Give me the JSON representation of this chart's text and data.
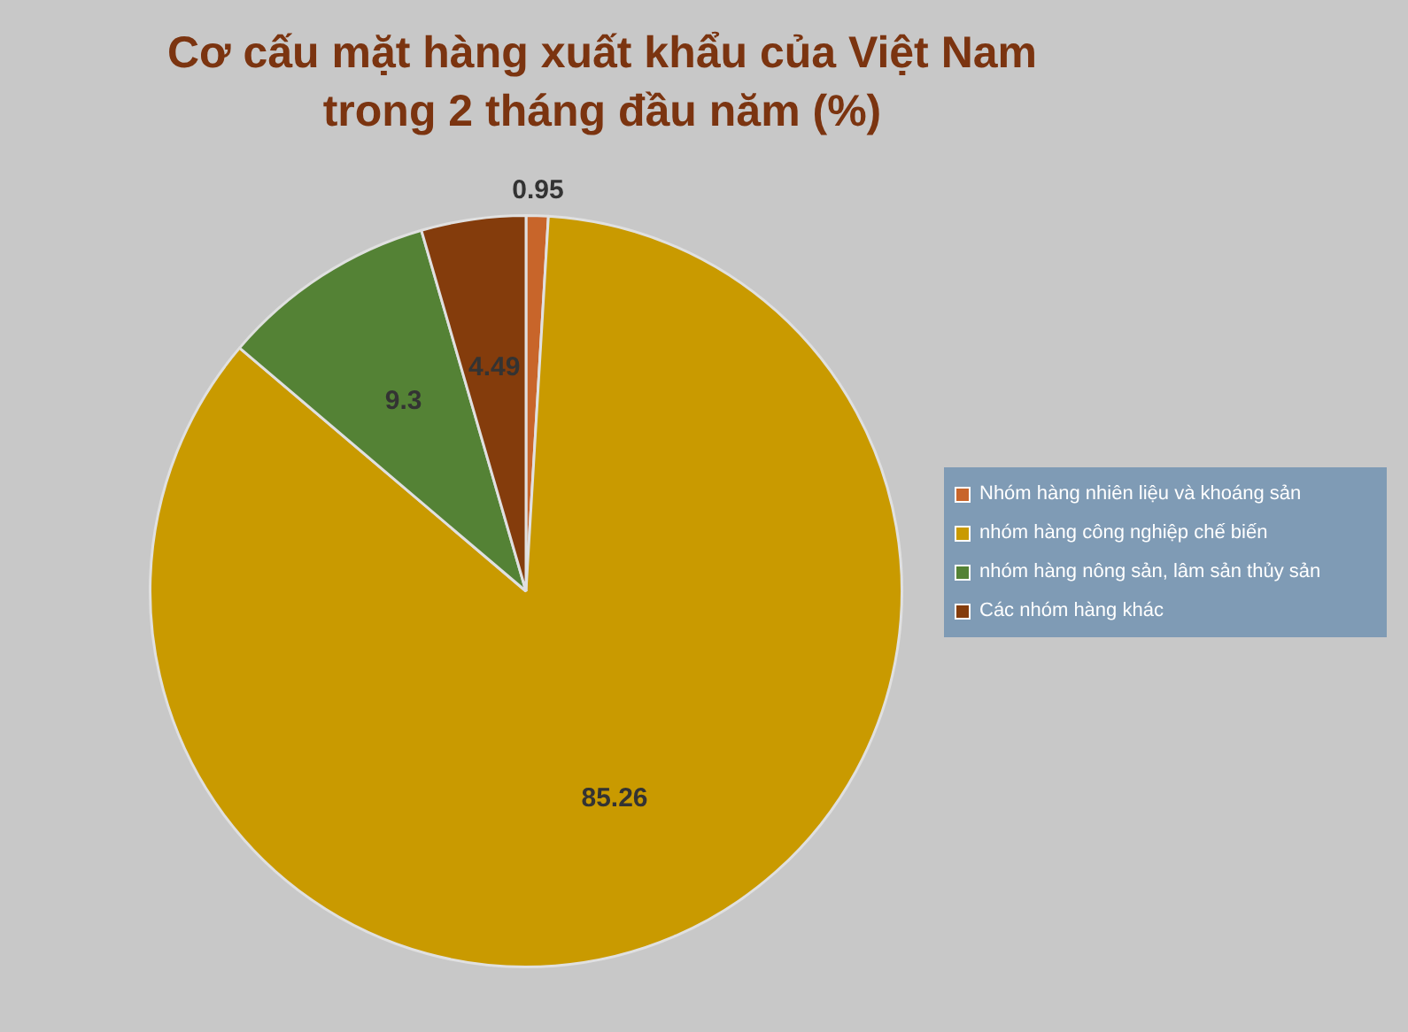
{
  "chart_data": {
    "type": "pie",
    "title": "Cơ cấu mặt hàng xuất khẩu của Việt Nam\ntrong 2 tháng đầu năm (%)",
    "categories": [
      "Nhóm hàng nhiên liệu và khoáng sản",
      "nhóm hàng công nghiệp chế biến",
      "nhóm hàng nông sản, lâm sản thủy sản",
      "Các nhóm hàng khác"
    ],
    "values": [
      0.95,
      85.26,
      9.3,
      4.49
    ],
    "colors": [
      "#c8652a",
      "#c99a00",
      "#548235",
      "#843c0c"
    ],
    "data_labels": true,
    "legend": "right"
  }
}
